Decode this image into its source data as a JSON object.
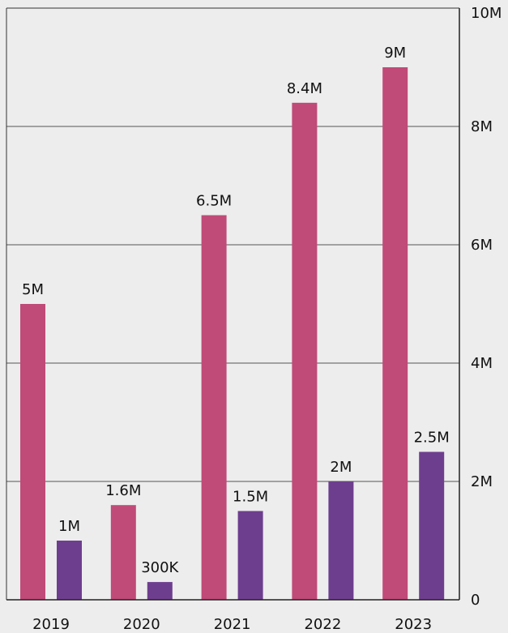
{
  "chart_data": {
    "type": "bar",
    "categories": [
      "2019",
      "2020",
      "2021",
      "2022",
      "2023"
    ],
    "series": [
      {
        "values": [
          5000000,
          1600000,
          6500000,
          8400000,
          9000000
        ],
        "labels": [
          "5M",
          "1.6M",
          "6.5M",
          "8.4M",
          "9M"
        ],
        "color": "#c04a78"
      },
      {
        "values": [
          1000000,
          300000,
          1500000,
          2000000,
          2500000
        ],
        "labels": [
          "1M",
          "300K",
          "1.5M",
          "2M",
          "2.5M"
        ],
        "color": "#6e3e8e"
      }
    ],
    "y_ticks": [
      {
        "value": 0,
        "label": "0"
      },
      {
        "value": 2000000,
        "label": "2M"
      },
      {
        "value": 4000000,
        "label": "4M"
      },
      {
        "value": 6000000,
        "label": "6M"
      },
      {
        "value": 8000000,
        "label": "8M"
      },
      {
        "value": 10000000,
        "label": "10M"
      }
    ],
    "ylim": [
      0,
      10000000
    ],
    "y_axis_position": "right",
    "grid": true,
    "title": "",
    "xlabel": "",
    "ylabel": ""
  }
}
